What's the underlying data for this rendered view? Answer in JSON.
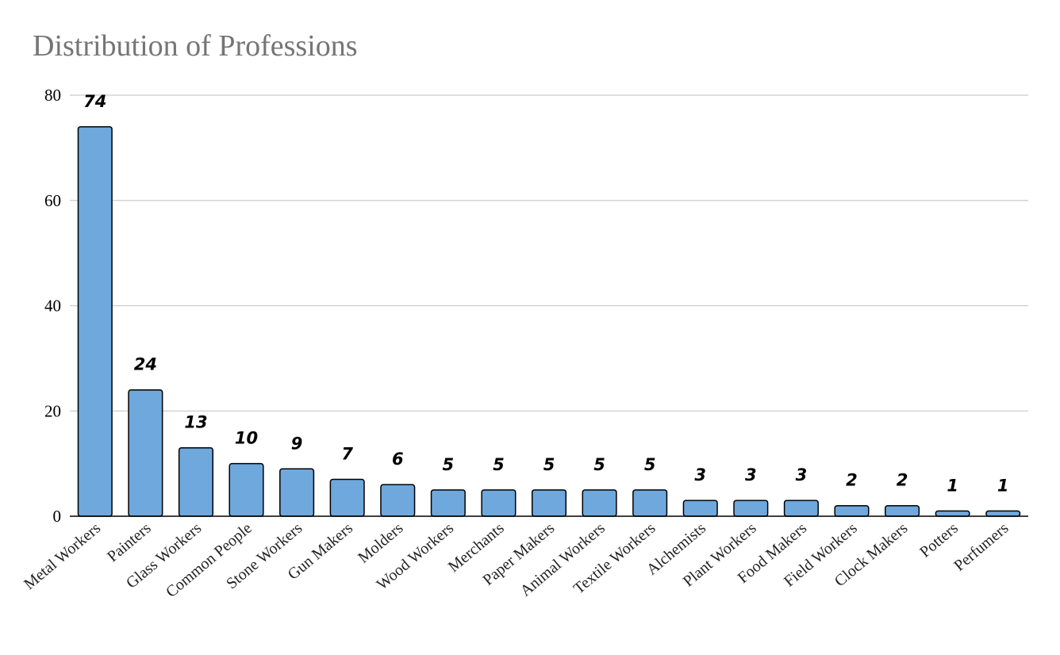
{
  "chart_data": {
    "type": "bar",
    "title": "Distribution of Professions",
    "xlabel": "",
    "ylabel": "",
    "ylim": [
      0,
      80
    ],
    "yticks": [
      0,
      20,
      40,
      60,
      80
    ],
    "grid": true,
    "legend": "none",
    "bar_color": "#6fa8dc",
    "bar_edge_color": "#000000",
    "categories": [
      "Metal Workers",
      "Painters",
      "Glass Workers",
      "Common People",
      "Stone Workers",
      "Gun Makers",
      "Molders",
      "Wood Workers",
      "Merchants",
      "Paper Makers",
      "Animal Workers",
      "Textile Workers",
      "Alchemists",
      "Plant Workers",
      "Food Makers",
      "Field Workers",
      "Clock Makers",
      "Potters",
      "Perfumers"
    ],
    "values": [
      74,
      24,
      13,
      10,
      9,
      7,
      6,
      5,
      5,
      5,
      5,
      5,
      3,
      3,
      3,
      2,
      2,
      1,
      1
    ]
  }
}
